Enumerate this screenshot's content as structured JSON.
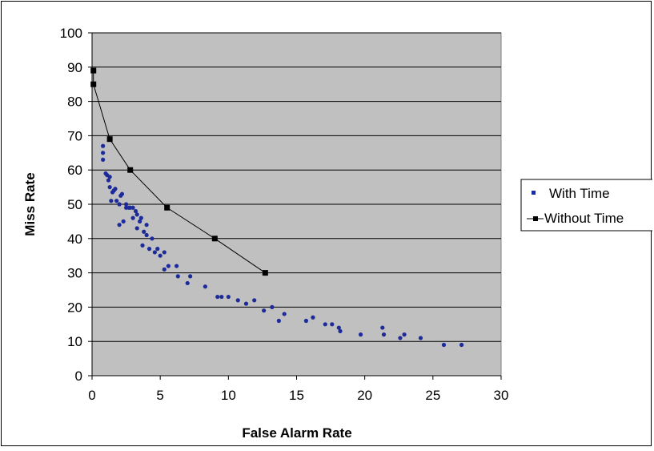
{
  "chart_data": {
    "type": "scatter",
    "title": "",
    "xlabel": "False Alarm Rate",
    "ylabel": "Miss Rate",
    "xlim": [
      0,
      30
    ],
    "ylim": [
      0,
      100
    ],
    "xticks": [
      "0",
      "5",
      "10",
      "15",
      "20",
      "25",
      "30"
    ],
    "yticks": [
      "0",
      "10",
      "20",
      "30",
      "40",
      "50",
      "60",
      "70",
      "80",
      "90",
      "100"
    ],
    "grid": "horizontal",
    "plot_background": "#c0c0c0",
    "legend_position": "right",
    "series": [
      {
        "name": "With Time",
        "mode": "markers",
        "color": "#1c2a9a",
        "points": [
          [
            0.8,
            67
          ],
          [
            0.8,
            65
          ],
          [
            0.8,
            63
          ],
          [
            1.0,
            59
          ],
          [
            1.1,
            58.5
          ],
          [
            1.2,
            57
          ],
          [
            1.3,
            58
          ],
          [
            1.3,
            55
          ],
          [
            1.4,
            51
          ],
          [
            1.5,
            53.5
          ],
          [
            1.6,
            54
          ],
          [
            1.7,
            54.5
          ],
          [
            1.8,
            51
          ],
          [
            2.0,
            50
          ],
          [
            2.0,
            44
          ],
          [
            2.1,
            52.5
          ],
          [
            2.2,
            53
          ],
          [
            2.3,
            45
          ],
          [
            2.5,
            50
          ],
          [
            2.5,
            49
          ],
          [
            2.7,
            49
          ],
          [
            2.8,
            49
          ],
          [
            3.0,
            46
          ],
          [
            3.0,
            49
          ],
          [
            3.2,
            48
          ],
          [
            3.3,
            47
          ],
          [
            3.3,
            43
          ],
          [
            3.5,
            45
          ],
          [
            3.6,
            46
          ],
          [
            3.7,
            38
          ],
          [
            3.8,
            42
          ],
          [
            4.0,
            41
          ],
          [
            4.0,
            44
          ],
          [
            4.2,
            37
          ],
          [
            4.4,
            40
          ],
          [
            4.6,
            36
          ],
          [
            4.8,
            37
          ],
          [
            5.0,
            35
          ],
          [
            5.3,
            36
          ],
          [
            5.3,
            31
          ],
          [
            5.6,
            32
          ],
          [
            6.2,
            32
          ],
          [
            6.3,
            29
          ],
          [
            7.0,
            27
          ],
          [
            7.2,
            29
          ],
          [
            8.3,
            26
          ],
          [
            9.2,
            23
          ],
          [
            9.5,
            23
          ],
          [
            10.0,
            23
          ],
          [
            10.7,
            22
          ],
          [
            11.3,
            21
          ],
          [
            11.9,
            22
          ],
          [
            12.6,
            19
          ],
          [
            13.2,
            20
          ],
          [
            13.7,
            16
          ],
          [
            14.1,
            18
          ],
          [
            15.7,
            16
          ],
          [
            16.2,
            17
          ],
          [
            17.1,
            15
          ],
          [
            17.6,
            15
          ],
          [
            18.1,
            14
          ],
          [
            18.2,
            13
          ],
          [
            19.7,
            12
          ],
          [
            21.3,
            14
          ],
          [
            21.4,
            12
          ],
          [
            22.6,
            11
          ],
          [
            22.9,
            12
          ],
          [
            24.1,
            11
          ],
          [
            25.8,
            9
          ],
          [
            27.1,
            9
          ]
        ]
      },
      {
        "name": "Without Time",
        "mode": "lines+markers",
        "color": "#000000",
        "points": [
          [
            0.1,
            89
          ],
          [
            0.1,
            85
          ],
          [
            1.3,
            69
          ],
          [
            2.8,
            60
          ],
          [
            5.5,
            49
          ],
          [
            9.0,
            40
          ],
          [
            12.7,
            30
          ]
        ]
      }
    ]
  }
}
